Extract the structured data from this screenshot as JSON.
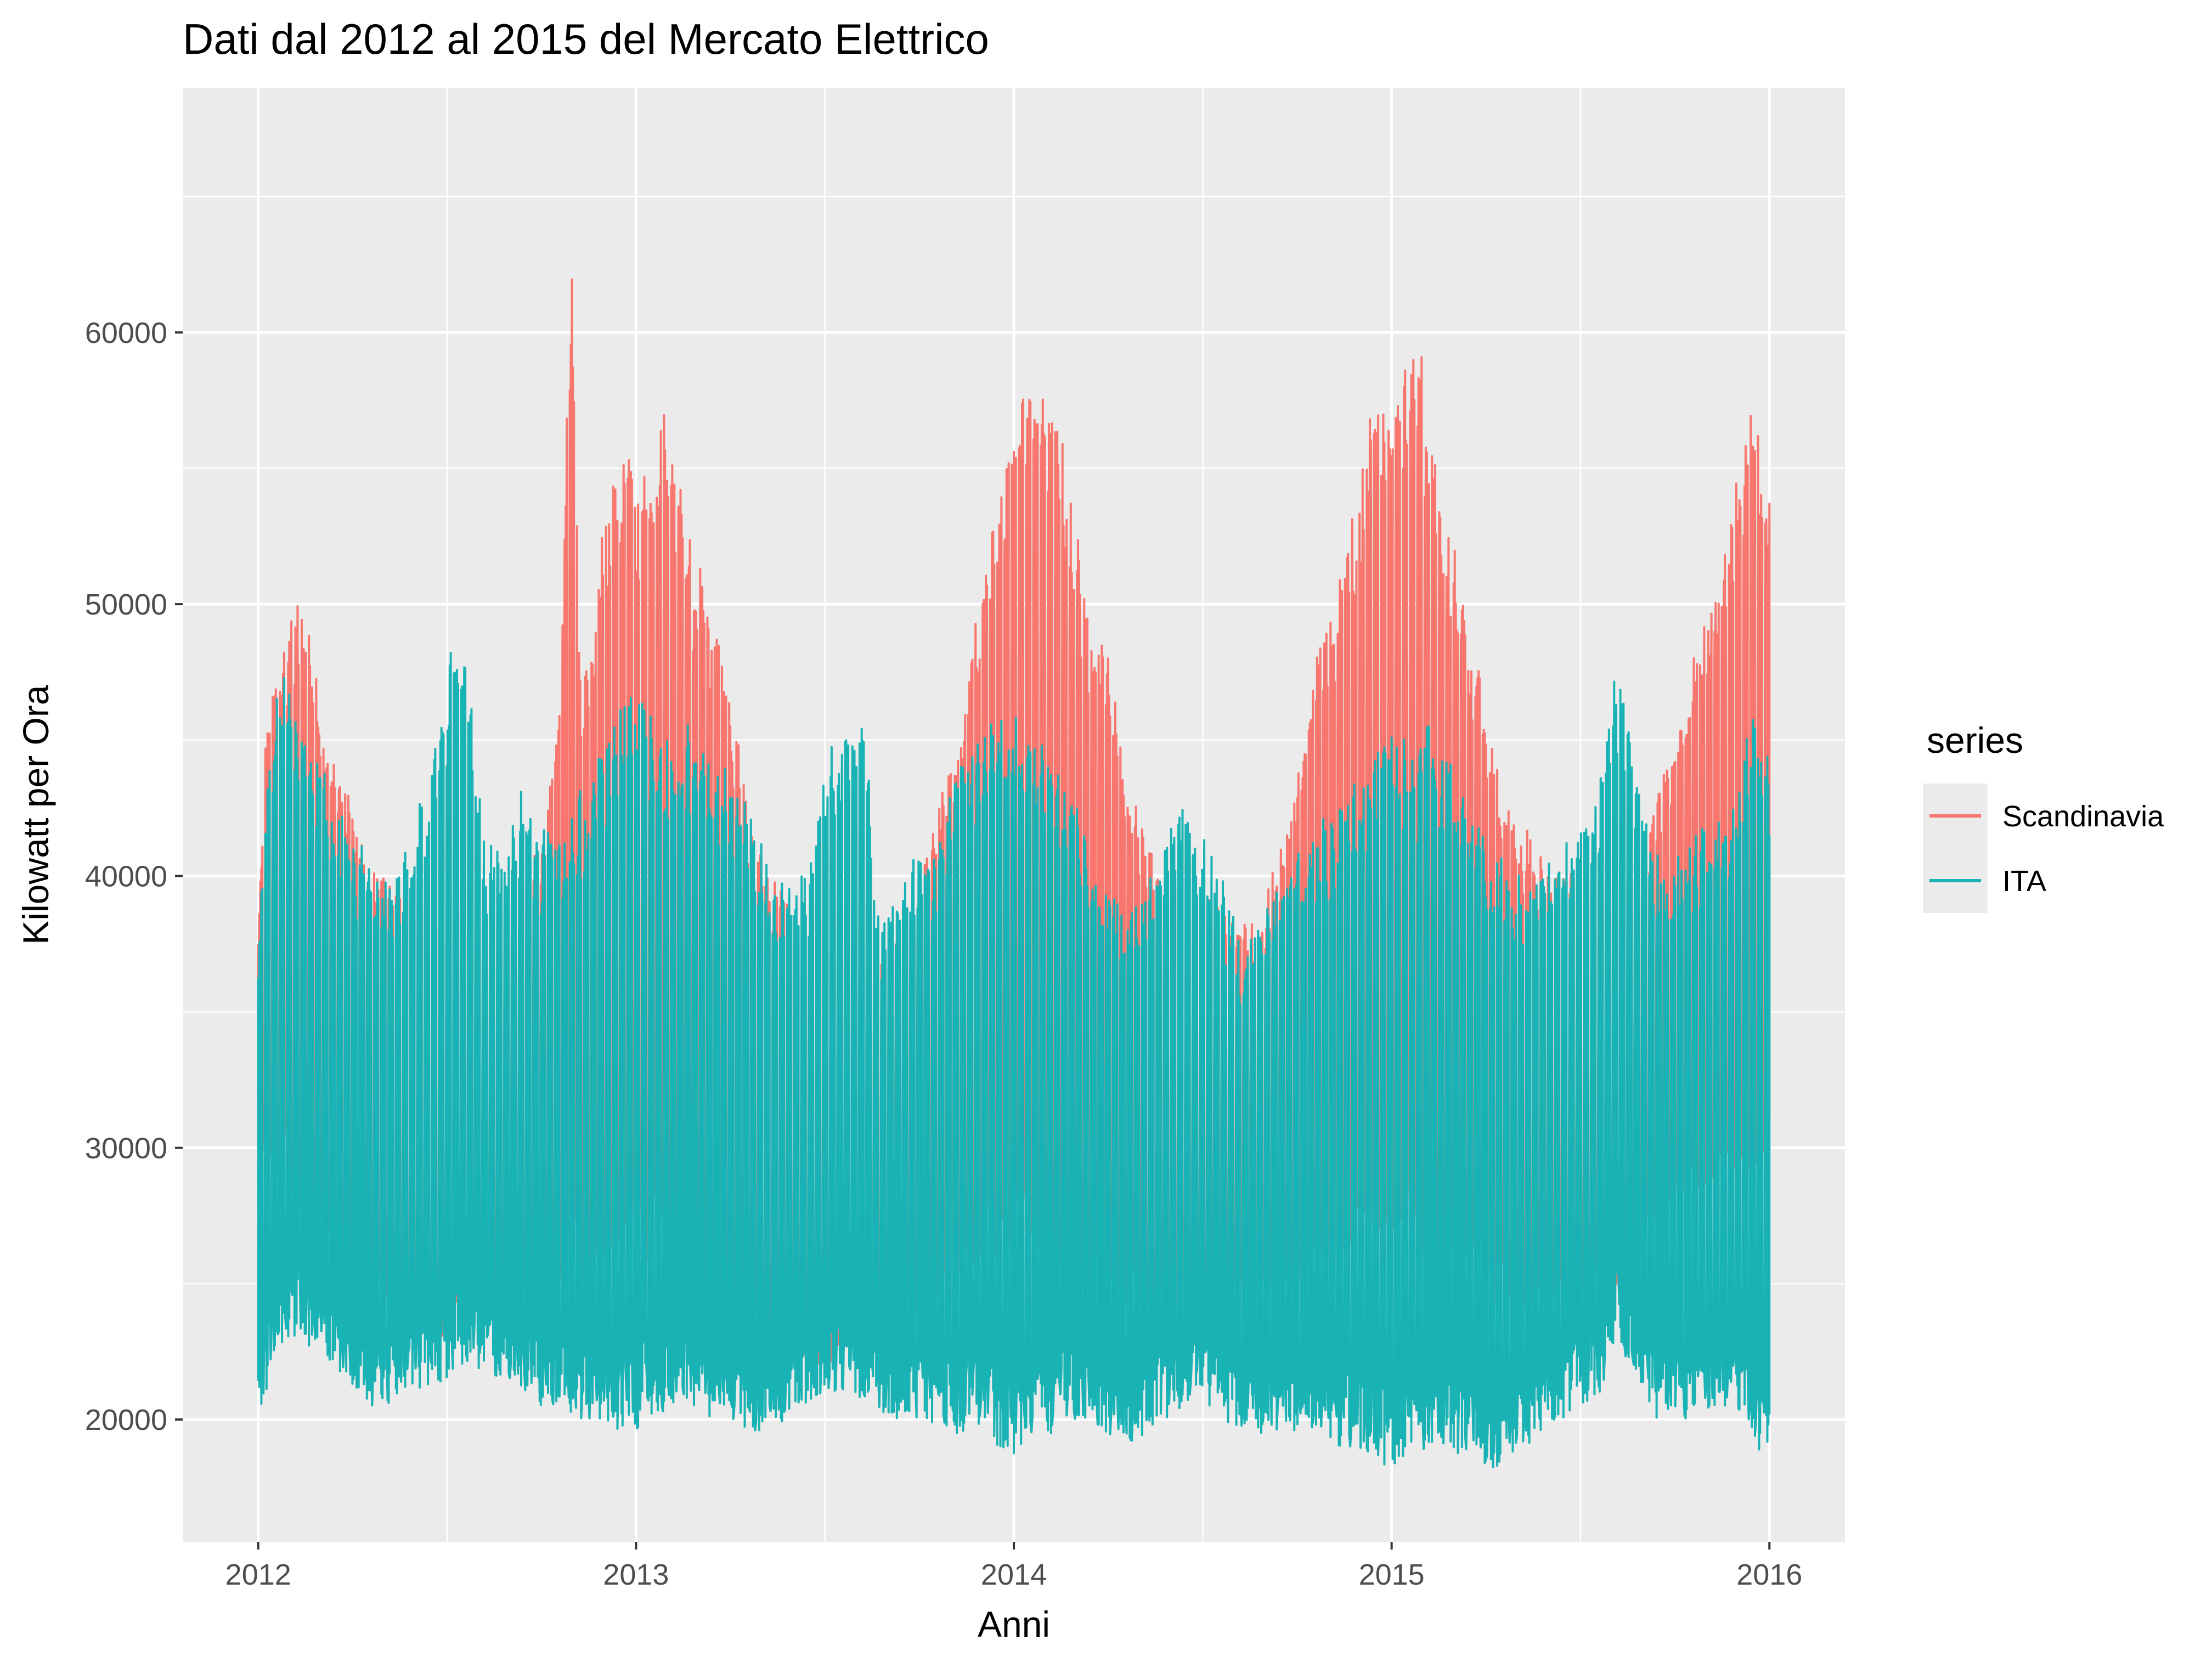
{
  "chart_data": {
    "type": "line",
    "title": "Dati dal 2012 al 2015 del Mercato Elettrico",
    "xlabel": "Anni",
    "ylabel": "Kilowatt per Ora",
    "xlim": [
      2011.8,
      2016.2
    ],
    "ylim": [
      15500,
      69000
    ],
    "x_ticks": [
      2012,
      2013,
      2014,
      2015,
      2016
    ],
    "x_tick_labels": [
      "2012",
      "2013",
      "2014",
      "2015",
      "2016"
    ],
    "y_ticks": [
      20000,
      30000,
      40000,
      50000,
      60000
    ],
    "y_tick_labels": [
      "20000",
      "30000",
      "40000",
      "50000",
      "60000"
    ],
    "grid": true,
    "legend": {
      "title": "series",
      "position": "right"
    },
    "series": [
      {
        "name": "Scandinavia",
        "color": "#F8766D",
        "envelope_x": [
          2012.0,
          2012.02,
          2012.05,
          2012.08,
          2012.1,
          2012.13,
          2012.17,
          2012.2,
          2012.25,
          2012.3,
          2012.4,
          2012.5,
          2012.55,
          2012.6,
          2012.7,
          2012.75,
          2012.8,
          2012.83,
          2012.85,
          2012.9,
          2012.95,
          2013.0,
          2013.05,
          2013.08,
          2013.1,
          2013.15,
          2013.2,
          2013.25,
          2013.3,
          2013.35,
          2013.4,
          2013.5,
          2013.6,
          2013.7,
          2013.75,
          2013.8,
          2013.85,
          2013.9,
          2013.95,
          2014.0,
          2014.05,
          2014.1,
          2014.15,
          2014.2,
          2014.25,
          2014.3,
          2014.35,
          2014.4,
          2014.5,
          2014.6,
          2014.65,
          2014.7,
          2014.75,
          2014.8,
          2014.85,
          2014.9,
          2014.95,
          2015.0,
          2015.05,
          2015.08,
          2015.1,
          2015.15,
          2015.2,
          2015.25,
          2015.3,
          2015.35,
          2015.4,
          2015.5,
          2015.6,
          2015.65,
          2015.7,
          2015.75,
          2015.8,
          2015.85,
          2015.9,
          2015.95,
          2015.98,
          2016.0
        ],
        "envelope_high": [
          38000,
          46000,
          48000,
          49500,
          51000,
          49500,
          46500,
          45000,
          43000,
          40500,
          40000,
          38500,
          38000,
          37000,
          40000,
          42000,
          47000,
          67000,
          48000,
          52000,
          56500,
          55000,
          56000,
          58000,
          55000,
          53000,
          50000,
          47000,
          43000,
          40000,
          39500,
          39500,
          37000,
          38000,
          40000,
          43000,
          45000,
          50000,
          54500,
          57000,
          59800,
          58500,
          55000,
          50000,
          49000,
          44000,
          42000,
          40000,
          40000,
          39000,
          38500,
          41000,
          44000,
          48500,
          51000,
          54000,
          58000,
          58500,
          60000,
          59500,
          57000,
          54000,
          50000,
          47000,
          43000,
          42000,
          41000,
          40000,
          39000,
          40000,
          43000,
          45000,
          49000,
          50500,
          54000,
          58000,
          56000,
          55000
        ],
        "envelope_low": [
          30000,
          29500,
          29000,
          28500,
          28000,
          27500,
          26500,
          25500,
          25000,
          24500,
          23500,
          23000,
          23500,
          24000,
          24500,
          24000,
          25000,
          25000,
          25000,
          25500,
          26000,
          26500,
          25500,
          25000,
          25000,
          24500,
          24000,
          23500,
          23000,
          22500,
          22000,
          22000,
          22500,
          23500,
          24000,
          24500,
          25000,
          25500,
          26000,
          26500,
          25500,
          25000,
          25000,
          24500,
          24000,
          24000,
          24000,
          24000,
          24000,
          24500,
          24500,
          24500,
          25000,
          25500,
          26000,
          26500,
          27000,
          27000,
          26500,
          26000,
          26000,
          25500,
          25000,
          24500,
          24000,
          24000,
          24000,
          24000,
          25000,
          26000,
          27500,
          28000,
          28500,
          28500,
          29000,
          29000,
          28500,
          28000
        ]
      },
      {
        "name": "ITA",
        "color": "#19B3B5",
        "envelope_x": [
          2012.0,
          2012.02,
          2012.05,
          2012.08,
          2012.1,
          2012.15,
          2012.2,
          2012.25,
          2012.3,
          2012.35,
          2012.4,
          2012.45,
          2012.5,
          2012.53,
          2012.55,
          2012.6,
          2012.65,
          2012.7,
          2012.75,
          2012.8,
          2012.85,
          2012.9,
          2012.95,
          2013.0,
          2013.05,
          2013.1,
          2013.15,
          2013.2,
          2013.25,
          2013.3,
          2013.35,
          2013.4,
          2013.45,
          2013.5,
          2013.55,
          2013.6,
          2013.65,
          2013.7,
          2013.75,
          2013.8,
          2013.85,
          2013.9,
          2013.95,
          2014.0,
          2014.05,
          2014.1,
          2014.15,
          2014.2,
          2014.25,
          2014.3,
          2014.35,
          2014.4,
          2014.45,
          2014.5,
          2014.55,
          2014.6,
          2014.65,
          2014.7,
          2014.75,
          2014.8,
          2014.85,
          2014.9,
          2014.95,
          2015.0,
          2015.05,
          2015.1,
          2015.15,
          2015.2,
          2015.25,
          2015.3,
          2015.35,
          2015.4,
          2015.45,
          2015.5,
          2015.55,
          2015.58,
          2015.6,
          2015.65,
          2015.7,
          2015.75,
          2015.8,
          2015.85,
          2015.9,
          2015.95,
          2016.0
        ],
        "envelope_high": [
          38000,
          44000,
          47500,
          48500,
          47000,
          45000,
          43000,
          42000,
          41000,
          40500,
          41500,
          44000,
          48000,
          50400,
          49000,
          42000,
          41000,
          43500,
          42000,
          42000,
          43500,
          45000,
          47000,
          48000,
          46000,
          45000,
          46000,
          45000,
          44000,
          43000,
          41000,
          40000,
          40500,
          44500,
          46000,
          47000,
          38500,
          40000,
          41500,
          42000,
          44000,
          45500,
          46500,
          46500,
          45500,
          45000,
          44000,
          42000,
          40000,
          39500,
          40000,
          42500,
          44000,
          42000,
          40000,
          38000,
          39000,
          40000,
          41000,
          42500,
          43000,
          44500,
          45500,
          46000,
          45500,
          46000,
          45000,
          44000,
          42000,
          40500,
          40000,
          40500,
          41500,
          42500,
          44000,
          47500,
          48800,
          44000,
          41500,
          41000,
          42000,
          42500,
          43500,
          46500,
          45000
        ],
        "envelope_low": [
          20000,
          21000,
          22500,
          23000,
          23000,
          22500,
          22000,
          21000,
          20500,
          20500,
          21000,
          21000,
          21500,
          22000,
          22000,
          21500,
          21500,
          21000,
          20500,
          20500,
          20000,
          19800,
          19500,
          19500,
          20000,
          20500,
          20500,
          20000,
          19800,
          19300,
          19500,
          20000,
          20500,
          21000,
          21000,
          20500,
          20000,
          20000,
          20000,
          19500,
          19500,
          19500,
          19000,
          18700,
          19000,
          19500,
          20000,
          20000,
          19500,
          19000,
          19500,
          20000,
          20500,
          20500,
          20000,
          19500,
          19500,
          19500,
          19500,
          19500,
          19000,
          19000,
          18500,
          18000,
          18500,
          19000,
          19000,
          18500,
          18000,
          18500,
          19000,
          19500,
          20000,
          20500,
          21000,
          22000,
          22500,
          21500,
          20000,
          20000,
          20000,
          20500,
          20500,
          19500,
          18000
        ]
      }
    ]
  }
}
